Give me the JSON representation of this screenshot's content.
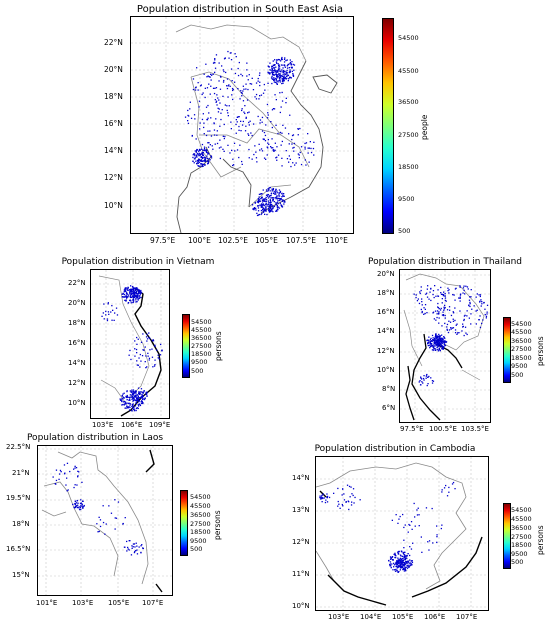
{
  "colormap": [
    "#00007f",
    "#0000ff",
    "#0063ff",
    "#00d4ff",
    "#29ffce",
    "#7dff7a",
    "#ceff29",
    "#ffc400",
    "#ff5900",
    "#e80000",
    "#7f0000"
  ],
  "cell_color": "#0000cd",
  "maps": [
    {
      "key": "sea",
      "title": "Population distribution in South East Asia",
      "colorbar_labels": [
        "54500",
        "45500",
        "36500",
        "27500",
        "18500",
        "9500",
        "500"
      ],
      "colorbar_unit": "people",
      "lat_labels": [
        "22°N",
        "20°N",
        "18°N",
        "16°N",
        "14°N",
        "12°N",
        "10°N"
      ],
      "lon_labels": [
        "97.5°E",
        "100°E",
        "102.5°E",
        "105°E",
        "107.5°E",
        "110°E"
      ]
    },
    {
      "key": "vn",
      "title": "Population distribution in Vietnam",
      "colorbar_labels": [
        "54500",
        "45500",
        "36500",
        "27500",
        "18500",
        "9500",
        "500"
      ],
      "colorbar_unit": "persons",
      "lat_labels": [
        "22°N",
        "20°N",
        "18°N",
        "16°N",
        "14°N",
        "12°N",
        "10°N"
      ],
      "lon_labels": [
        "103°E",
        "106°E",
        "109°E"
      ]
    },
    {
      "key": "th",
      "title": "Population distribution in Thailand",
      "colorbar_labels": [
        "54500",
        "45500",
        "36500",
        "27500",
        "18500",
        "9500",
        "500"
      ],
      "colorbar_unit": "persons",
      "lat_labels": [
        "20°N",
        "18°N",
        "16°N",
        "14°N",
        "12°N",
        "10°N",
        "8°N",
        "6°N"
      ],
      "lon_labels": [
        "97.5°E",
        "100.5°E",
        "103.5°E"
      ]
    },
    {
      "key": "la",
      "title": "Population distribution in Laos",
      "colorbar_labels": [
        "54500",
        "45500",
        "36500",
        "27500",
        "18500",
        "9500",
        "500"
      ],
      "colorbar_unit": "persons",
      "lat_labels": [
        "22.5°N",
        "21°N",
        "19.5°N",
        "18°N",
        "16.5°N",
        "15°N"
      ],
      "lon_labels": [
        "101°E",
        "103°E",
        "105°E",
        "107°E"
      ]
    },
    {
      "key": "kh",
      "title": "Population distribution in Cambodia",
      "colorbar_labels": [
        "54500",
        "45500",
        "36500",
        "27500",
        "18500",
        "9500",
        "500"
      ],
      "colorbar_unit": "persons",
      "lat_labels": [
        "14°N",
        "13°N",
        "12°N",
        "11°N",
        "10°N"
      ],
      "lon_labels": [
        "103°E",
        "104°E",
        "105°E",
        "106°E",
        "107°E"
      ]
    }
  ]
}
